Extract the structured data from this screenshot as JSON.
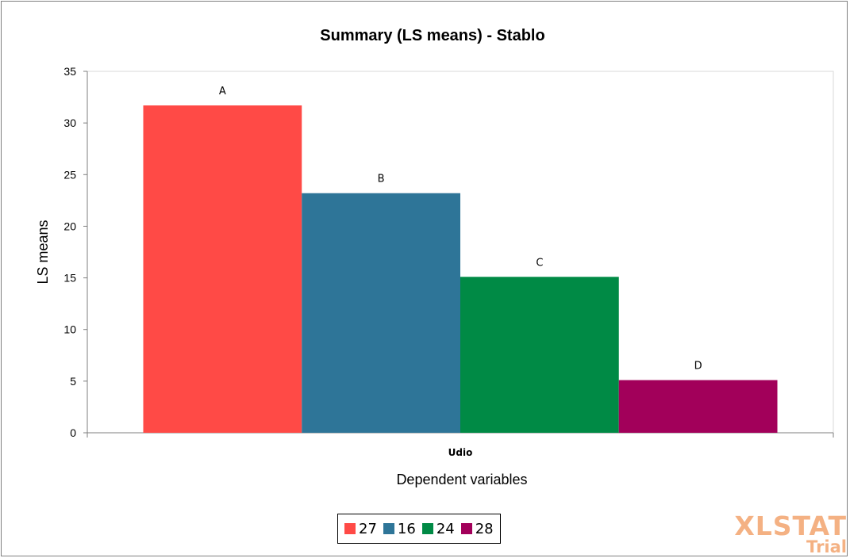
{
  "chart_data": {
    "type": "bar",
    "title": "Summary (LS means) - Stablo",
    "xlabel": "Dependent variables",
    "ylabel": "LS means",
    "categories": [
      "Udio"
    ],
    "ylim": [
      0,
      35
    ],
    "yticks": [
      0,
      5,
      10,
      15,
      20,
      25,
      30,
      35
    ],
    "grid": false,
    "legend_position": "bottom",
    "series": [
      {
        "name": "27",
        "values": [
          31.7
        ],
        "color": "#ff4a46",
        "label": "A"
      },
      {
        "name": "16",
        "values": [
          23.2
        ],
        "color": "#2e7598",
        "label": "B"
      },
      {
        "name": "24",
        "values": [
          15.1
        ],
        "color": "#008a45",
        "label": "C"
      },
      {
        "name": "28",
        "values": [
          5.1
        ],
        "color": "#a2005a",
        "label": "D"
      }
    ]
  },
  "watermark": {
    "main": "XLSTAT",
    "sub": "Trial"
  }
}
